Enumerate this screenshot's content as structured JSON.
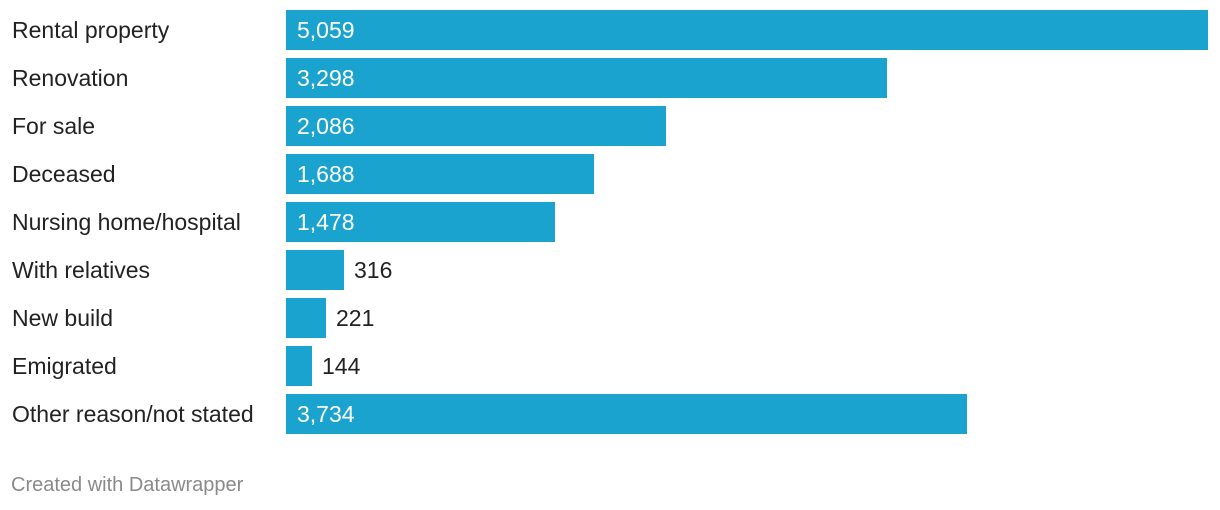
{
  "chart_data": {
    "type": "bar",
    "orientation": "horizontal",
    "categories": [
      "Rental property",
      "Renovation",
      "For sale",
      "Deceased",
      "Nursing home/hospital",
      "With relatives",
      "New build",
      "Emigrated",
      "Other reason/not stated"
    ],
    "values": [
      5059,
      3298,
      2086,
      1688,
      1478,
      316,
      221,
      144,
      3734
    ],
    "value_labels": [
      "5,059",
      "3,298",
      "2,086",
      "1,688",
      "1,478",
      "316",
      "221",
      "144",
      "3,734"
    ],
    "title": "",
    "xlabel": "",
    "ylabel": "",
    "xlim": [
      0,
      5059
    ],
    "grid": false,
    "legend": "none",
    "bar_color": "#1ba3cf"
  },
  "footer": {
    "credit": "Created with Datawrapper"
  }
}
